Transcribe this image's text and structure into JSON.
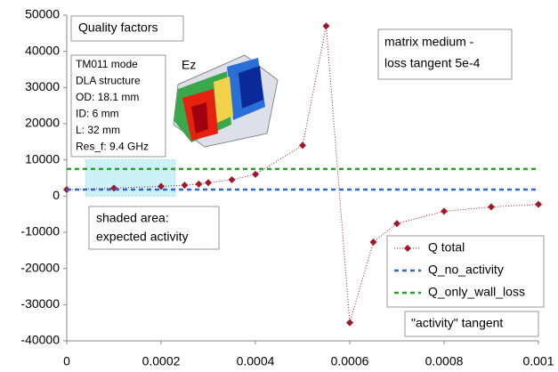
{
  "chart_data": {
    "type": "line",
    "title": "Quality factors",
    "xlim": [
      0,
      0.001
    ],
    "xticks": [
      0,
      0.0002,
      0.0004,
      0.0006,
      0.0008,
      0.001
    ],
    "ylim": [
      -40000,
      50000
    ],
    "yticks": [
      -40000,
      -30000,
      -20000,
      -10000,
      0,
      10000,
      20000,
      30000,
      40000,
      50000
    ],
    "legend": "lower right",
    "shaded_region": {
      "x": [
        4e-05,
        0.00023
      ],
      "y": [
        0,
        10000
      ],
      "color": "#ccf2f7"
    },
    "series": [
      {
        "name": "Q total",
        "color": "#a0182a",
        "style": "dotted-with-markers",
        "x": [
          0,
          0.0001,
          0.0002,
          0.00025,
          0.00028,
          0.0003,
          0.00035,
          0.0004,
          0.0005,
          0.00055,
          0.0006,
          0.00065,
          0.0007,
          0.0008,
          0.0009,
          0.001
        ],
        "values": [
          1800,
          2200,
          2700,
          3000,
          3300,
          3700,
          4500,
          6000,
          14000,
          47000,
          -35000,
          -12700,
          -7600,
          -4200,
          -3000,
          -2300
        ]
      },
      {
        "name": "Q_no_activity",
        "color": "#3366cc",
        "style": "dashed",
        "x": [
          0,
          0.001
        ],
        "values": [
          1800,
          1800
        ]
      },
      {
        "name": "Q_only_wall_loss",
        "color": "#2e9e2e",
        "style": "dashed",
        "x": [
          0,
          0.001
        ],
        "values": [
          7500,
          7500
        ]
      }
    ],
    "annotations": {
      "params": [
        "TM011 mode",
        "DLA structure",
        "OD: 18.1 mm",
        "ID: 6 mm",
        "L: 32 mm",
        "Res_f: 9.4 GHz"
      ],
      "field_label": "Ez",
      "medium": [
        "matrix medium -",
        "loss tangent 5e-4"
      ],
      "shaded_note": [
        "shaded area:",
        "expected activity"
      ],
      "tangent_note": "\"activity\" tangent"
    }
  }
}
